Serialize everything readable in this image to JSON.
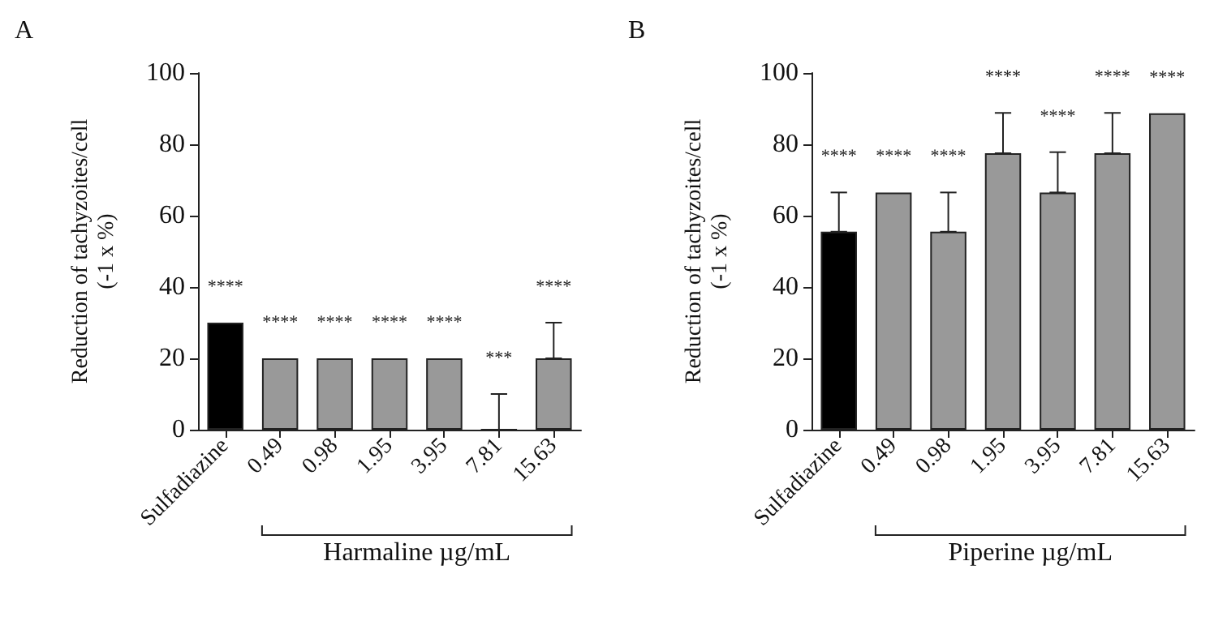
{
  "chart_data": [
    {
      "type": "bar",
      "title": "A",
      "xlabel": "Harmaline µg/mL",
      "ylabel": "Reduction of tachyzoites/cell\n(-1 x %)",
      "categories": [
        "Sulfadiazine",
        "0.49",
        "0.98",
        "1.95",
        "3.95",
        "7.81",
        "15.63"
      ],
      "values": [
        30,
        20,
        20,
        20,
        20,
        0,
        20
      ],
      "colors": [
        "#000000",
        "#999999",
        "#999999",
        "#999999",
        "#999999",
        "#999999",
        "#999999"
      ],
      "errors": [
        null,
        null,
        null,
        null,
        null,
        [
          0,
          10
        ],
        [
          20,
          30
        ]
      ],
      "ylim": [
        0,
        100
      ],
      "yticks": [
        0,
        20,
        40,
        60,
        80,
        100
      ],
      "grid": false,
      "annotations": [
        "****",
        "****",
        "****",
        "****",
        "****",
        "***",
        "****"
      ]
    },
    {
      "type": "bar",
      "title": "B",
      "xlabel": "Piperine µg/mL",
      "ylabel": "Reduction of tachyzoites/cell\n(-1 x %)",
      "categories": [
        "Sulfadiazine",
        "0.49",
        "0.98",
        "1.95",
        "3.95",
        "7.81",
        "15.63"
      ],
      "values": [
        55.5,
        66.5,
        55.5,
        77.5,
        66.5,
        77.5,
        88.7
      ],
      "colors": [
        "#000000",
        "#999999",
        "#999999",
        "#999999",
        "#999999",
        "#999999",
        "#999999"
      ],
      "errors": [
        [
          55.5,
          66.5
        ],
        null,
        [
          55.5,
          66.5
        ],
        [
          77.5,
          88.8
        ],
        [
          66.5,
          77.8
        ],
        [
          77.5,
          88.8
        ],
        null
      ],
      "ylim": [
        0,
        100
      ],
      "yticks": [
        0,
        20,
        40,
        60,
        80,
        100
      ],
      "grid": false,
      "annotations": [
        "****",
        "****",
        "****",
        "****",
        "****",
        "****",
        "****"
      ]
    }
  ]
}
